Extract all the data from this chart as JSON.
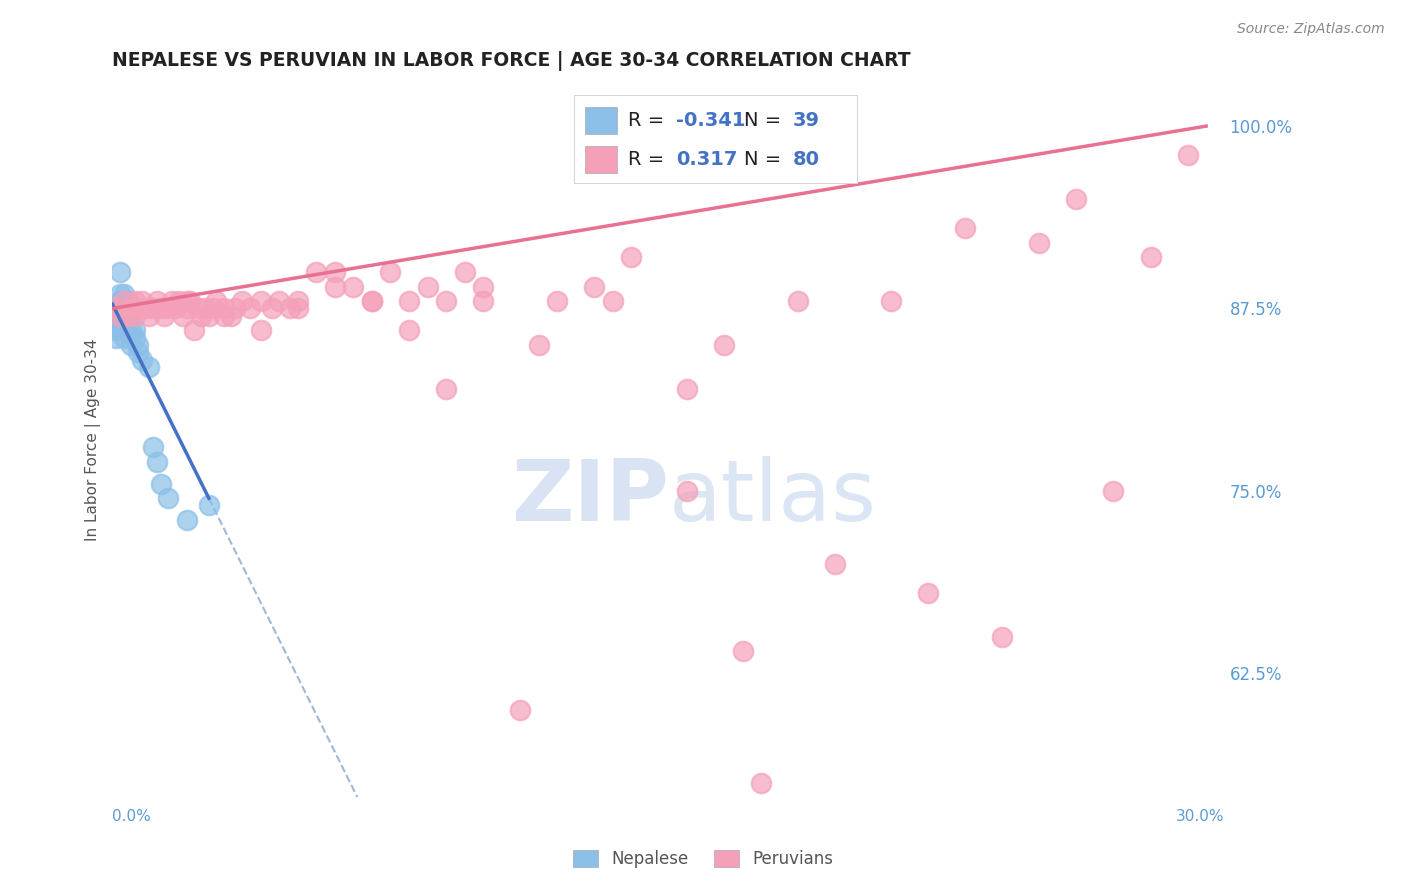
{
  "title": "NEPALESE VS PERUVIAN IN LABOR FORCE | AGE 30-34 CORRELATION CHART",
  "source_text": "Source: ZipAtlas.com",
  "ylabel": "In Labor Force | Age 30-34",
  "right_yticks": [
    1.0,
    0.875,
    0.75,
    0.625
  ],
  "right_ytick_labels": [
    "100.0%",
    "87.5%",
    "75.0%",
    "62.5%"
  ],
  "xmin": 0.0,
  "xmax": 0.3,
  "ymin": 0.54,
  "ymax": 1.03,
  "legend_r_nepalese": "-0.341",
  "legend_n_nepalese": "39",
  "legend_r_peruvian": "0.317",
  "legend_n_peruvian": "80",
  "nepalese_color": "#8bbfe8",
  "peruvian_color": "#f4a0b8",
  "nepalese_line_color": "#4472c4",
  "peruvian_line_color": "#e87090",
  "dashed_line_color": "#a0b8d8",
  "watermark_color": "#d0ddf0",
  "text_color": "#333333",
  "axis_color": "#5b9bd5",
  "grid_color": "#d0d0d0",
  "nepalese_x": [
    0.001,
    0.001,
    0.001,
    0.001,
    0.001,
    0.001,
    0.002,
    0.002,
    0.002,
    0.002,
    0.002,
    0.002,
    0.002,
    0.003,
    0.003,
    0.003,
    0.003,
    0.003,
    0.003,
    0.004,
    0.004,
    0.004,
    0.004,
    0.004,
    0.005,
    0.005,
    0.005,
    0.006,
    0.006,
    0.007,
    0.007,
    0.008,
    0.01,
    0.011,
    0.012,
    0.013,
    0.015,
    0.02,
    0.026
  ],
  "nepalese_y": [
    0.875,
    0.875,
    0.87,
    0.86,
    0.86,
    0.855,
    0.9,
    0.885,
    0.88,
    0.875,
    0.87,
    0.865,
    0.86,
    0.885,
    0.875,
    0.87,
    0.865,
    0.86,
    0.855,
    0.88,
    0.875,
    0.87,
    0.865,
    0.86,
    0.87,
    0.86,
    0.85,
    0.86,
    0.855,
    0.85,
    0.845,
    0.84,
    0.835,
    0.78,
    0.77,
    0.755,
    0.745,
    0.73,
    0.74
  ],
  "peruvian_x": [
    0.001,
    0.002,
    0.003,
    0.004,
    0.005,
    0.006,
    0.006,
    0.007,
    0.008,
    0.009,
    0.01,
    0.011,
    0.012,
    0.013,
    0.014,
    0.015,
    0.016,
    0.017,
    0.018,
    0.019,
    0.02,
    0.021,
    0.022,
    0.023,
    0.024,
    0.025,
    0.026,
    0.027,
    0.028,
    0.03,
    0.032,
    0.033,
    0.035,
    0.037,
    0.04,
    0.043,
    0.045,
    0.048,
    0.05,
    0.055,
    0.06,
    0.065,
    0.07,
    0.075,
    0.08,
    0.085,
    0.09,
    0.095,
    0.1,
    0.11,
    0.12,
    0.13,
    0.14,
    0.155,
    0.165,
    0.175,
    0.185,
    0.195,
    0.21,
    0.22,
    0.23,
    0.24,
    0.25,
    0.26,
    0.27,
    0.28,
    0.29,
    0.17,
    0.155,
    0.135,
    0.115,
    0.1,
    0.09,
    0.08,
    0.07,
    0.06,
    0.05,
    0.04,
    0.03,
    0.02
  ],
  "peruvian_y": [
    0.875,
    0.87,
    0.88,
    0.87,
    0.875,
    0.88,
    0.87,
    0.875,
    0.88,
    0.875,
    0.87,
    0.875,
    0.88,
    0.875,
    0.87,
    0.875,
    0.88,
    0.875,
    0.88,
    0.87,
    0.875,
    0.88,
    0.86,
    0.875,
    0.87,
    0.875,
    0.87,
    0.875,
    0.88,
    0.875,
    0.87,
    0.875,
    0.88,
    0.875,
    0.88,
    0.875,
    0.88,
    0.875,
    0.875,
    0.9,
    0.9,
    0.89,
    0.88,
    0.9,
    0.88,
    0.89,
    0.88,
    0.9,
    0.89,
    0.6,
    0.88,
    0.89,
    0.91,
    0.82,
    0.85,
    0.55,
    0.88,
    0.7,
    0.88,
    0.68,
    0.93,
    0.65,
    0.92,
    0.95,
    0.75,
    0.91,
    0.98,
    0.64,
    0.75,
    0.88,
    0.85,
    0.88,
    0.82,
    0.86,
    0.88,
    0.89,
    0.88,
    0.86,
    0.87,
    0.88
  ]
}
